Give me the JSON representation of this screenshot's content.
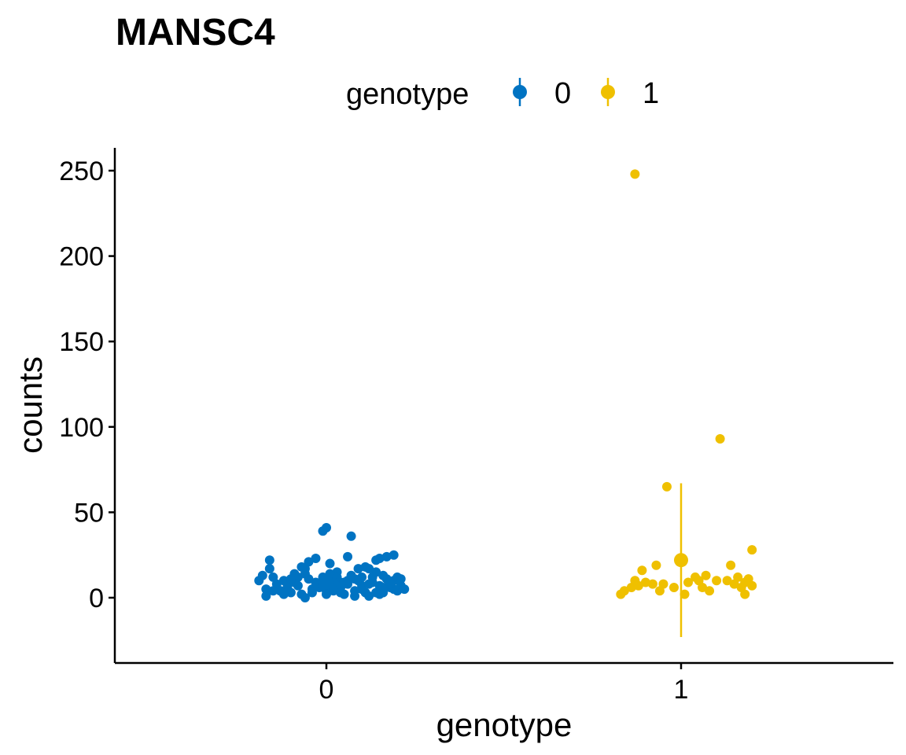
{
  "chart_data": {
    "type": "scatter",
    "title": "MANSC4",
    "xlabel": "genotype",
    "ylabel": "counts",
    "categories": [
      "0",
      "1"
    ],
    "ylim": [
      -38,
      262
    ],
    "yticks": [
      0,
      50,
      100,
      150,
      200,
      250
    ],
    "legend": {
      "title": "genotype",
      "placement": "top",
      "entries": [
        "0",
        "1"
      ]
    },
    "colors": {
      "0": "#0073C2",
      "1": "#EFC000"
    },
    "grid": false,
    "series": [
      {
        "name": "0",
        "summary": {
          "mean": 9,
          "lower": 8,
          "upper": 10
        },
        "points": [
          [
            -0.19,
            10
          ],
          [
            -0.18,
            13
          ],
          [
            -0.17,
            5
          ],
          [
            -0.17,
            1
          ],
          [
            -0.16,
            22
          ],
          [
            -0.16,
            17
          ],
          [
            -0.15,
            12
          ],
          [
            -0.14,
            8
          ],
          [
            -0.13,
            4
          ],
          [
            -0.12,
            10
          ],
          [
            -0.11,
            6
          ],
          [
            -0.1,
            3
          ],
          [
            -0.09,
            9
          ],
          [
            -0.09,
            14
          ],
          [
            -0.08,
            7
          ],
          [
            -0.07,
            2
          ],
          [
            -0.06,
            0
          ],
          [
            -0.05,
            11
          ],
          [
            -0.04,
            5
          ],
          [
            -0.03,
            23
          ],
          [
            -0.02,
            8
          ],
          [
            -0.01,
            12
          ],
          [
            0.0,
            4
          ],
          [
            0.01,
            6
          ],
          [
            -0.13,
            4
          ],
          [
            -0.11,
            8
          ],
          [
            -0.08,
            12
          ],
          [
            -0.07,
            18
          ],
          [
            -0.06,
            17
          ],
          [
            -0.05,
            21
          ],
          [
            -0.04,
            3
          ],
          [
            -0.03,
            9
          ],
          [
            -0.02,
            6
          ],
          [
            -0.01,
            39
          ],
          [
            0.0,
            41
          ],
          [
            0.01,
            11
          ],
          [
            0.01,
            20
          ],
          [
            0.02,
            5
          ],
          [
            0.03,
            15
          ],
          [
            0.04,
            9
          ],
          [
            0.05,
            2
          ],
          [
            0.06,
            24
          ],
          [
            0.06,
            8
          ],
          [
            0.07,
            13
          ],
          [
            0.08,
            1
          ],
          [
            0.09,
            17
          ],
          [
            0.09,
            10
          ],
          [
            0.1,
            7
          ],
          [
            0.11,
            3
          ],
          [
            0.11,
            18
          ],
          [
            -0.01,
            7
          ],
          [
            0.0,
            2
          ],
          [
            0.01,
            14
          ],
          [
            0.02,
            4
          ],
          [
            0.03,
            12
          ],
          [
            0.04,
            6
          ],
          [
            0.05,
            9
          ],
          [
            0.07,
            36
          ],
          [
            0.08,
            11
          ],
          [
            0.1,
            5
          ],
          [
            0.12,
            1
          ],
          [
            0.13,
            9
          ],
          [
            0.14,
            22
          ],
          [
            0.14,
            15
          ],
          [
            0.15,
            7
          ],
          [
            0.15,
            23
          ],
          [
            0.16,
            3
          ],
          [
            0.17,
            24
          ],
          [
            0.17,
            11
          ],
          [
            0.18,
            6
          ],
          [
            0.19,
            25
          ],
          [
            0.19,
            10
          ],
          [
            0.2,
            4
          ],
          [
            0.12,
            8
          ],
          [
            0.13,
            12
          ],
          [
            0.15,
            2
          ],
          [
            0.16,
            6
          ],
          [
            0.18,
            9
          ],
          [
            0.19,
            5
          ],
          [
            0.2,
            12
          ],
          [
            0.21,
            7
          ],
          [
            0.22,
            5
          ],
          [
            -0.15,
            4
          ],
          [
            -0.12,
            2
          ],
          [
            -0.1,
            11
          ],
          [
            -0.06,
            14
          ],
          [
            0.02,
            9
          ],
          [
            0.04,
            3
          ],
          [
            0.06,
            10
          ],
          [
            0.08,
            4
          ],
          [
            0.1,
            12
          ],
          [
            0.12,
            17
          ],
          [
            0.14,
            3
          ],
          [
            0.16,
            13
          ],
          [
            0.18,
            8
          ],
          [
            0.21,
            11
          ]
        ]
      },
      {
        "name": "1",
        "summary": {
          "mean": 22,
          "lower": -23,
          "upper": 67
        },
        "points": [
          [
            -0.17,
            2
          ],
          [
            -0.16,
            4
          ],
          [
            -0.14,
            6
          ],
          [
            -0.13,
            10
          ],
          [
            -0.12,
            7
          ],
          [
            -0.11,
            16
          ],
          [
            -0.1,
            9
          ],
          [
            -0.08,
            8
          ],
          [
            -0.07,
            19
          ],
          [
            -0.06,
            4
          ],
          [
            -0.05,
            8
          ],
          [
            -0.04,
            65
          ],
          [
            -0.13,
            248
          ],
          [
            -0.02,
            6
          ],
          [
            0.01,
            2
          ],
          [
            0.02,
            9
          ],
          [
            0.04,
            12
          ],
          [
            0.05,
            10
          ],
          [
            0.06,
            6
          ],
          [
            0.07,
            13
          ],
          [
            0.08,
            4
          ],
          [
            0.1,
            10
          ],
          [
            0.11,
            93
          ],
          [
            0.13,
            10
          ],
          [
            0.14,
            19
          ],
          [
            0.15,
            8
          ],
          [
            0.16,
            12
          ],
          [
            0.17,
            6
          ],
          [
            0.18,
            9
          ],
          [
            0.18,
            2
          ],
          [
            0.19,
            11
          ],
          [
            0.2,
            28
          ],
          [
            0.2,
            7
          ]
        ]
      }
    ]
  }
}
